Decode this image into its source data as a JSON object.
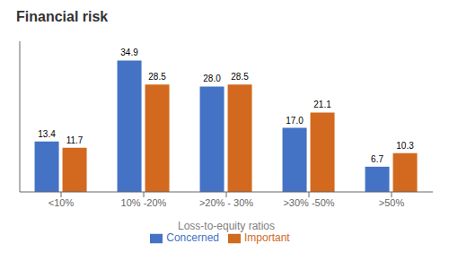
{
  "chart_data": {
    "type": "bar",
    "title": "Financial risk",
    "xlabel": "Loss-to-equity ratios",
    "categories": [
      "<10%",
      "10% -20%",
      ">20% - 30%",
      ">30% -50%",
      ">50%"
    ],
    "series": [
      {
        "name": "Concerned",
        "color": "#4472C4",
        "values": [
          13.4,
          34.9,
          28.0,
          17.0,
          6.7
        ],
        "value_labels": [
          "13.4",
          "34.9",
          "28.0",
          "17.0",
          "6.7"
        ]
      },
      {
        "name": "Important",
        "color": "#D2691E",
        "values": [
          11.7,
          28.5,
          28.5,
          21.1,
          10.3
        ],
        "value_labels": [
          "11.7",
          "28.5",
          "28.5",
          "21.1",
          "10.3"
        ]
      }
    ],
    "ylim": [
      0,
      40
    ],
    "grid": false,
    "legend": "bottom",
    "tick_labels": "x",
    "data_labels": true
  }
}
